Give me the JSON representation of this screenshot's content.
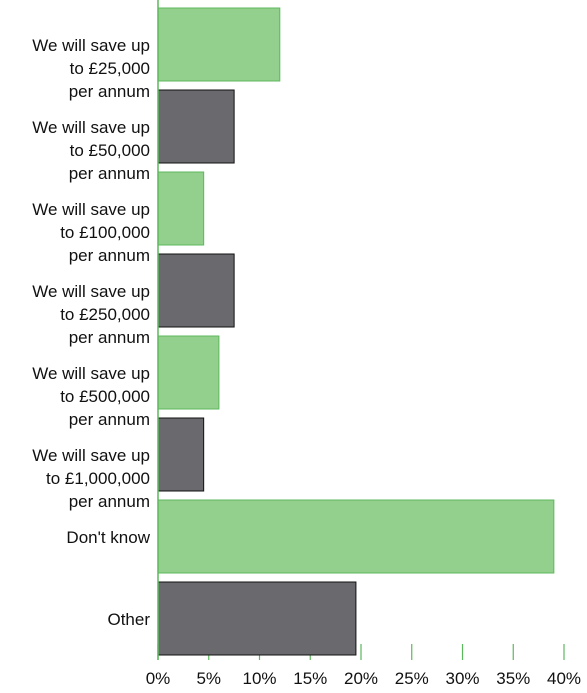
{
  "chart_data": {
    "type": "barh",
    "categories": [
      "We will save up\nto £25,000\nper annum",
      "We will save up\nto £50,000\nper annum",
      "We will save up\nto £100,000\nper annum",
      "We will save up\nto £250,000\nper annum",
      "We will save up\nto £500,000\nper annum",
      "We will save up\nto £1,000,000\nper annum",
      "Don't know",
      "Other"
    ],
    "values": [
      12,
      7.5,
      4.5,
      7.5,
      6,
      4.5,
      39,
      19.5
    ],
    "colors": [
      "#93cf8d",
      "#69696e",
      "#93cf8d",
      "#69696e",
      "#93cf8d",
      "#69696e",
      "#93cf8d",
      "#69696e"
    ],
    "xlim": [
      0,
      40
    ],
    "xticks": [
      {
        "value": 0,
        "label": "0%"
      },
      {
        "value": 5,
        "label": "5%"
      },
      {
        "value": 10,
        "label": "10%"
      },
      {
        "value": 15,
        "label": "15%"
      },
      {
        "value": 20,
        "label": "20%"
      },
      {
        "value": 25,
        "label": "25%"
      },
      {
        "value": 30,
        "label": "30%"
      },
      {
        "value": 35,
        "label": "35%"
      },
      {
        "value": 40,
        "label": "40%"
      }
    ]
  }
}
